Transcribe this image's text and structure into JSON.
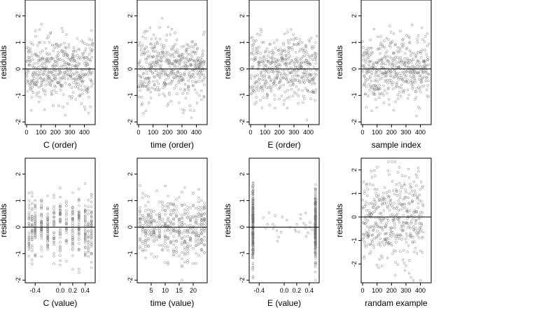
{
  "chart_data": [
    {
      "type": "scatter",
      "xlabel": "C (order)",
      "ylabel": "residuals",
      "xlim": [
        -10,
        475
      ],
      "ylim": [
        -2.1,
        2.6
      ],
      "xticks": [
        0,
        100,
        200,
        300,
        400
      ],
      "xtick_labels": [
        "0",
        "100",
        "200",
        "300",
        "400"
      ],
      "yticks": [
        -2,
        -1,
        0,
        1,
        2
      ],
      "ytick_labels": [
        "-2",
        "-1",
        "0",
        "1",
        "2"
      ],
      "reference_line": 0,
      "pattern": "order",
      "seed": 11
    },
    {
      "type": "scatter",
      "xlabel": "time (order)",
      "ylabel": "residuals",
      "xlim": [
        -10,
        475
      ],
      "ylim": [
        -2.1,
        2.6
      ],
      "xticks": [
        0,
        100,
        200,
        300,
        400
      ],
      "xtick_labels": [
        "0",
        "100",
        "200",
        "300",
        "400"
      ],
      "yticks": [
        -2,
        -1,
        0,
        1,
        2
      ],
      "ytick_labels": [
        "-2",
        "-1",
        "0",
        "1",
        "2"
      ],
      "reference_line": 0,
      "pattern": "order",
      "seed": 23
    },
    {
      "type": "scatter",
      "xlabel": "E (order)",
      "ylabel": "residuals",
      "xlim": [
        -10,
        475
      ],
      "ylim": [
        -2.1,
        2.6
      ],
      "xticks": [
        0,
        100,
        200,
        300,
        400
      ],
      "xtick_labels": [
        "0",
        "100",
        "200",
        "300",
        "400"
      ],
      "yticks": [
        -2,
        -1,
        0,
        1,
        2
      ],
      "ytick_labels": [
        "-2",
        "-1",
        "0",
        "1",
        "2"
      ],
      "reference_line": 0,
      "pattern": "order",
      "seed": 37
    },
    {
      "type": "scatter",
      "xlabel": "sample index",
      "ylabel": "residuals",
      "xlim": [
        -10,
        475
      ],
      "ylim": [
        -2.1,
        2.6
      ],
      "xticks": [
        0,
        100,
        200,
        300,
        400
      ],
      "xtick_labels": [
        "0",
        "100",
        "200",
        "300",
        "400"
      ],
      "yticks": [
        -2,
        -1,
        0,
        1,
        2
      ],
      "ytick_labels": [
        "-2",
        "-1",
        "0",
        "1",
        "2"
      ],
      "reference_line": 0,
      "pattern": "order",
      "seed": 41
    },
    {
      "type": "scatter",
      "xlabel": "C (value)",
      "ylabel": "residuals",
      "xlim": [
        -0.56,
        0.56
      ],
      "ylim": [
        -2.1,
        2.6
      ],
      "xticks": [
        -0.4,
        0.0,
        0.2,
        0.4
      ],
      "xtick_labels": [
        "-0.4",
        "0.0",
        "0.2",
        "0.4"
      ],
      "yticks": [
        -2,
        -1,
        0,
        1,
        2
      ],
      "ytick_labels": [
        "-2",
        "-1",
        "0",
        "1",
        "2"
      ],
      "reference_line": 0,
      "pattern": "columns",
      "columns": [
        -0.5,
        -0.45,
        -0.4,
        -0.3,
        -0.2,
        -0.1,
        0.0,
        0.1,
        0.2,
        0.3,
        0.4,
        0.45,
        0.5
      ],
      "seed": 53
    },
    {
      "type": "scatter",
      "xlabel": "time (value)",
      "ylabel": "residuals",
      "xlim": [
        0,
        25
      ],
      "ylim": [
        -2.1,
        2.6
      ],
      "xticks": [
        5,
        10,
        15,
        20
      ],
      "xtick_labels": [
        "5",
        "10",
        "15",
        "20"
      ],
      "yticks": [
        -2,
        -1,
        0,
        1,
        2
      ],
      "ytick_labels": [
        "-2",
        "-1",
        "0",
        "1",
        "2"
      ],
      "reference_line": 0,
      "pattern": "columns",
      "columns": [
        1,
        2,
        3,
        4,
        5,
        6,
        7,
        8,
        9,
        10,
        11,
        12,
        13,
        14,
        15,
        16,
        17,
        18,
        19,
        20,
        21,
        22,
        23,
        24
      ],
      "seed": 61
    },
    {
      "type": "scatter",
      "xlabel": "E (value)",
      "ylabel": "residuals",
      "xlim": [
        -0.56,
        0.56
      ],
      "ylim": [
        -2.1,
        2.6
      ],
      "xticks": [
        -0.4,
        0.0,
        0.2,
        0.4
      ],
      "xtick_labels": [
        "-0.4",
        "0.0",
        "0.2",
        "0.4"
      ],
      "yticks": [
        -2,
        -1,
        0,
        1,
        2
      ],
      "ytick_labels": [
        "-2",
        "-1",
        "0",
        "1",
        "2"
      ],
      "reference_line": 0,
      "pattern": "edges",
      "columns": [
        -0.5,
        0.5
      ],
      "seed": 71
    },
    {
      "type": "scatter",
      "xlabel": "randam example",
      "ylabel": "residuals",
      "xlim": [
        -10,
        475
      ],
      "ylim": [
        -2.8,
        2.5
      ],
      "xticks": [
        0,
        100,
        200,
        300,
        400
      ],
      "xtick_labels": [
        "0",
        "100",
        "200",
        "300",
        "400"
      ],
      "yticks": [
        -2,
        -1,
        0,
        1,
        2
      ],
      "ytick_labels": [
        "-2",
        "-1",
        "0",
        "1",
        "2"
      ],
      "reference_line": 0,
      "pattern": "random",
      "seed": 89
    }
  ]
}
